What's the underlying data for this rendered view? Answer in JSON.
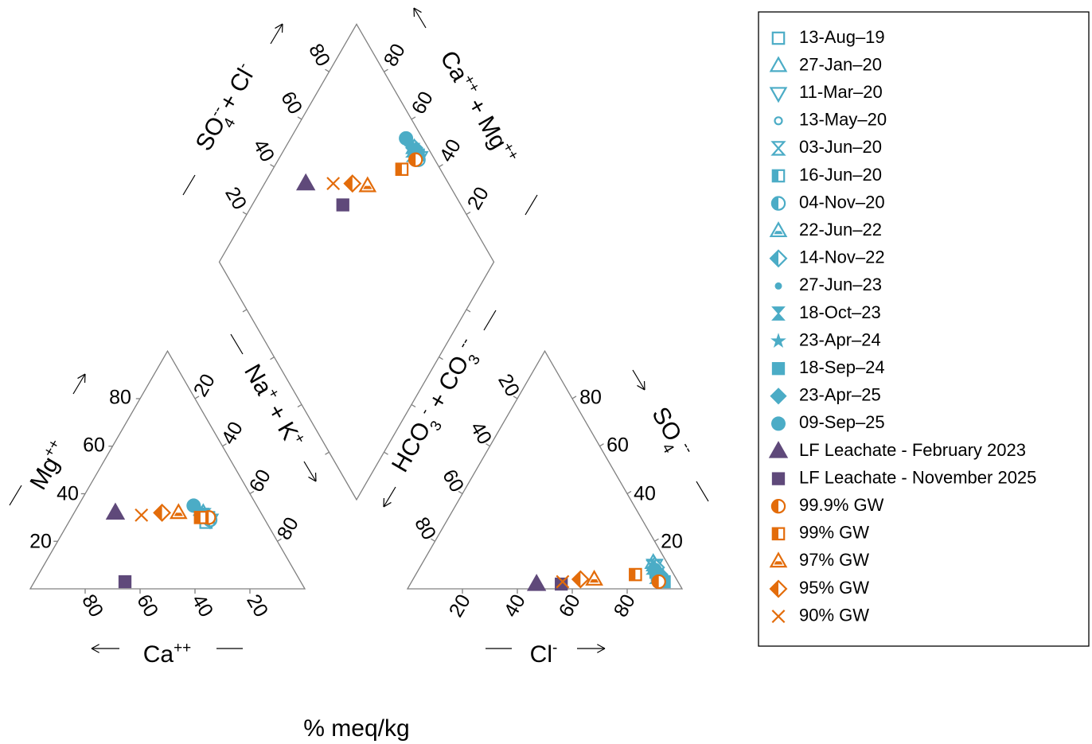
{
  "colors": {
    "gw": "#4bacc6",
    "gw_blend": "#e36c0a",
    "leachate": "#5f497a",
    "frame": "#808080"
  },
  "units_label": "% meq/kg",
  "axis_labels": {
    "mg": "Mg",
    "mg_sup": "++",
    "ca": "Ca",
    "ca_sup": "++",
    "nak_na": "Na",
    "nak_na_sup": "+",
    "nak_plus": " + K",
    "nak_k_sup": "+",
    "hco3": "HCO",
    "hco3_sub": "3",
    "hco3_sup": "-",
    "hco3_plus": " + CO",
    "co3_sub": "3",
    "co3_sup": "--",
    "cl": "Cl",
    "cl_sup": "-",
    "so4": "SO",
    "so4_sub": "4",
    "so4_sup": "--",
    "so4cl_so": "SO",
    "so4cl_sup": "--",
    "so4cl_sub": "4",
    "so4cl_plus": " + Cl",
    "so4cl_cl_sup": "-",
    "camg_ca": "Ca",
    "camg_ca_sup": "++",
    "camg_plus": " + Mg",
    "camg_mg_sup": "++"
  },
  "ticks": [
    "20",
    "40",
    "60",
    "80"
  ],
  "chart_data": {
    "type": "scatter",
    "subtype": "piper-diagram",
    "units": "% meq/kg",
    "legend_position": "right",
    "series": [
      {
        "name": "13-Aug–19",
        "marker": "square-open",
        "color": "#4bacc6",
        "cations": {
          "ca": 22,
          "mg": 28,
          "nak": 50
        },
        "anions": {
          "cl": 88,
          "so4": 6,
          "hco3": 6
        }
      },
      {
        "name": "27-Jan–20",
        "marker": "triangle-up-open",
        "color": "#4bacc6",
        "cations": {
          "ca": 22,
          "mg": 30,
          "nak": 48
        },
        "anions": {
          "cl": 84,
          "so4": 11,
          "hco3": 5
        }
      },
      {
        "name": "11-Mar–20",
        "marker": "triangle-down-open",
        "color": "#4bacc6",
        "cations": {
          "ca": 20,
          "mg": 29,
          "nak": 51
        },
        "anions": {
          "cl": 85,
          "so4": 10,
          "hco3": 5
        }
      },
      {
        "name": "13-May–20",
        "marker": "circle-small-open",
        "color": "#4bacc6",
        "cations": {
          "ca": 21,
          "mg": 30,
          "nak": 49
        },
        "anions": {
          "cl": 86,
          "so4": 9,
          "hco3": 5
        }
      },
      {
        "name": "03-Jun–20",
        "marker": "hourglass-open",
        "color": "#4bacc6",
        "cations": {
          "ca": 22,
          "mg": 31,
          "nak": 47
        },
        "anions": {
          "cl": 85,
          "so4": 9,
          "hco3": 6
        }
      },
      {
        "name": "16-Jun–20",
        "marker": "square-half",
        "color": "#4bacc6",
        "cations": {
          "ca": 21,
          "mg": 30,
          "nak": 49
        },
        "anions": {
          "cl": 87,
          "so4": 7,
          "hco3": 6
        }
      },
      {
        "name": "04-Nov–20",
        "marker": "circle-half",
        "color": "#4bacc6",
        "cations": {
          "ca": 20,
          "mg": 29,
          "nak": 51
        },
        "anions": {
          "cl": 87,
          "so4": 7,
          "hco3": 6
        }
      },
      {
        "name": "22-Jun–22",
        "marker": "triangle-half",
        "color": "#4bacc6",
        "cations": {
          "ca": 21,
          "mg": 32,
          "nak": 47
        },
        "anions": {
          "cl": 85,
          "so4": 10,
          "hco3": 5
        }
      },
      {
        "name": "14-Nov–22",
        "marker": "diamond-half",
        "color": "#4bacc6",
        "cations": {
          "ca": 22,
          "mg": 31,
          "nak": 47
        },
        "anions": {
          "cl": 86,
          "so4": 9,
          "hco3": 5
        }
      },
      {
        "name": "27-Jun–23",
        "marker": "circle-small-filled",
        "color": "#4bacc6",
        "cations": {
          "ca": 22,
          "mg": 33,
          "nak": 45
        },
        "anions": {
          "cl": 87,
          "so4": 7,
          "hco3": 6
        }
      },
      {
        "name": "18-Oct–23",
        "marker": "hourglass-filled",
        "color": "#4bacc6",
        "cations": {
          "ca": 21,
          "mg": 31,
          "nak": 48
        },
        "anions": {
          "cl": 88,
          "so4": 5,
          "hco3": 7
        }
      },
      {
        "name": "23-Apr–24",
        "marker": "star-filled",
        "color": "#4bacc6",
        "cations": {
          "ca": 22,
          "mg": 32,
          "nak": 46
        },
        "anions": {
          "cl": 88,
          "so4": 6,
          "hco3": 6
        }
      },
      {
        "name": "18-Sep–24",
        "marker": "square-filled",
        "color": "#4bacc6",
        "cations": {
          "ca": 20,
          "mg": 30,
          "nak": 50
        },
        "anions": {
          "cl": 92,
          "so4": 3,
          "hco3": 5
        }
      },
      {
        "name": "23-Apr–25",
        "marker": "diamond-filled",
        "color": "#4bacc6",
        "cations": {
          "ca": 21,
          "mg": 31,
          "nak": 48
        },
        "anions": {
          "cl": 89,
          "so4": 6,
          "hco3": 5
        }
      },
      {
        "name": "09-Sep–25",
        "marker": "circle-filled",
        "color": "#4bacc6",
        "cations": {
          "ca": 23,
          "mg": 35,
          "nak": 42
        },
        "anions": {
          "cl": 86,
          "so4": 8,
          "hco3": 6
        }
      },
      {
        "name": "LF Leachate - February 2023",
        "marker": "triangle-up-filled",
        "color": "#5f497a",
        "cations": {
          "ca": 53,
          "mg": 32,
          "nak": 15
        },
        "anions": {
          "cl": 46,
          "so4": 2,
          "hco3": 52
        }
      },
      {
        "name": "LF Leachate - November 2025",
        "marker": "square-filled",
        "color": "#5f497a",
        "cations": {
          "ca": 64,
          "mg": 3,
          "nak": 33
        },
        "anions": {
          "cl": 55,
          "so4": 2,
          "hco3": 43
        }
      },
      {
        "name": "99.9% GW",
        "marker": "circle-half",
        "color": "#e36c0a",
        "cations": {
          "ca": 20,
          "mg": 30,
          "nak": 50
        },
        "anions": {
          "cl": 90,
          "so4": 3,
          "hco3": 7
        }
      },
      {
        "name": "99% GW",
        "marker": "square-half",
        "color": "#e36c0a",
        "cations": {
          "ca": 23,
          "mg": 30,
          "nak": 47
        },
        "anions": {
          "cl": 80,
          "so4": 6,
          "hco3": 14
        }
      },
      {
        "name": "97% GW",
        "marker": "triangle-half",
        "color": "#e36c0a",
        "cations": {
          "ca": 30,
          "mg": 32,
          "nak": 38
        },
        "anions": {
          "cl": 66,
          "so4": 4,
          "hco3": 30
        }
      },
      {
        "name": "95% GW",
        "marker": "diamond-half",
        "color": "#e36c0a",
        "cations": {
          "ca": 36,
          "mg": 32,
          "nak": 32
        },
        "anions": {
          "cl": 61,
          "so4": 4,
          "hco3": 35
        }
      },
      {
        "name": "90% GW",
        "marker": "x",
        "color": "#e36c0a",
        "cations": {
          "ca": 44,
          "mg": 31,
          "nak": 25
        },
        "anions": {
          "cl": 55,
          "so4": 3,
          "hco3": 42
        }
      }
    ]
  }
}
